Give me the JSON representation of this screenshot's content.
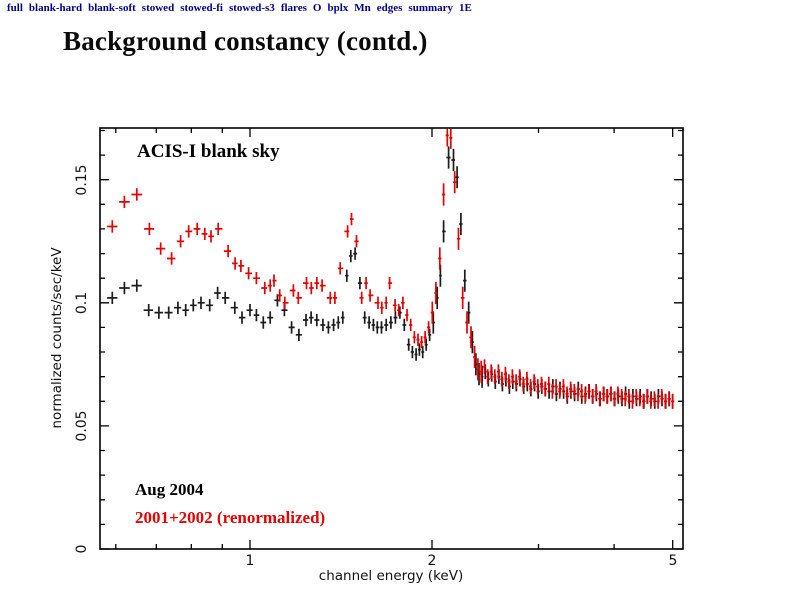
{
  "nav": {
    "items": [
      {
        "label": "full"
      },
      {
        "label": "blank-hard"
      },
      {
        "label": "blank-soft"
      },
      {
        "label": "stowed"
      },
      {
        "label": "stowed-fi"
      },
      {
        "label": "stowed-s3"
      },
      {
        "label": "flares"
      },
      {
        "label": "O"
      },
      {
        "label": "bplx"
      },
      {
        "label": "Mn"
      },
      {
        "label": "edges"
      },
      {
        "label": "summary"
      },
      {
        "label": "1E"
      }
    ]
  },
  "title": "Background constancy (contd.)",
  "colors": {
    "nav": "#00008b",
    "black_series": "#1c1c1c",
    "red_series": "#e60000"
  },
  "chart_data": {
    "type": "scatter",
    "annotation": "ACIS-I blank sky",
    "xlabel": "channel energy (keV)",
    "ylabel": "normalized counts/sec/keV",
    "xscale": "log",
    "xlim": [
      0.565,
      5.2
    ],
    "ylim": [
      0,
      0.171
    ],
    "x_major_ticks": [
      1,
      2,
      5
    ],
    "x_minor_ticks": [
      0.6,
      0.7,
      0.8,
      0.9,
      3,
      4
    ],
    "x_tick_labels": [
      "1",
      "2",
      "5"
    ],
    "y_major_ticks": [
      0,
      0.05,
      0.1,
      0.15
    ],
    "y_tick_labels": [
      "0",
      "0.05",
      "0.1",
      "0.15"
    ],
    "y_minor_step": 0.01,
    "grid": false,
    "legend_position": "bottom-left-inside",
    "yerr_rule": {
      "low": 0.0025,
      "peak": 0.0045,
      "high": 0.003,
      "peak_min": 2.0,
      "peak_max": 2.42
    },
    "series": [
      {
        "name": "Aug 2004",
        "color": "#1c1c1c",
        "points": [
          [
            0.592,
            0.102
          ],
          [
            0.62,
            0.106
          ],
          [
            0.65,
            0.107
          ],
          [
            0.68,
            0.097
          ],
          [
            0.707,
            0.096
          ],
          [
            0.734,
            0.096
          ],
          [
            0.76,
            0.098
          ],
          [
            0.783,
            0.097
          ],
          [
            0.806,
            0.099
          ],
          [
            0.83,
            0.1
          ],
          [
            0.858,
            0.099
          ],
          [
            0.884,
            0.104
          ],
          [
            0.91,
            0.102
          ],
          [
            0.944,
            0.098
          ],
          [
            0.97,
            0.094
          ],
          [
            1.0,
            0.097
          ],
          [
            1.025,
            0.095
          ],
          [
            1.052,
            0.092
          ],
          [
            1.08,
            0.094
          ],
          [
            1.11,
            0.101
          ],
          [
            1.14,
            0.097
          ],
          [
            1.172,
            0.09
          ],
          [
            1.205,
            0.087
          ],
          [
            1.238,
            0.093
          ],
          [
            1.262,
            0.094
          ],
          [
            1.29,
            0.093
          ],
          [
            1.32,
            0.091
          ],
          [
            1.348,
            0.09
          ],
          [
            1.375,
            0.091
          ],
          [
            1.4,
            0.092
          ],
          [
            1.424,
            0.094
          ],
          [
            1.446,
            0.111
          ],
          [
            1.468,
            0.119
          ],
          [
            1.492,
            0.12
          ],
          [
            1.52,
            0.108
          ],
          [
            1.548,
            0.094
          ],
          [
            1.574,
            0.092
          ],
          [
            1.6,
            0.091
          ],
          [
            1.624,
            0.09
          ],
          [
            1.65,
            0.09
          ],
          [
            1.68,
            0.091
          ],
          [
            1.71,
            0.092
          ],
          [
            1.74,
            0.094
          ],
          [
            1.77,
            0.096
          ],
          [
            1.8,
            0.091
          ],
          [
            1.83,
            0.083
          ],
          [
            1.856,
            0.08
          ],
          [
            1.882,
            0.079
          ],
          [
            1.906,
            0.081
          ],
          [
            1.93,
            0.08
          ],
          [
            1.956,
            0.083
          ],
          [
            1.982,
            0.087
          ],
          [
            2.01,
            0.092
          ],
          [
            2.04,
            0.102
          ],
          [
            2.065,
            0.111
          ],
          [
            2.09,
            0.129
          ],
          [
            2.13,
            0.159
          ],
          [
            2.17,
            0.158
          ],
          [
            2.2,
            0.151
          ],
          [
            2.232,
            0.132
          ],
          [
            2.266,
            0.109
          ],
          [
            2.3,
            0.096
          ],
          [
            2.332,
            0.084
          ],
          [
            2.364,
            0.075
          ],
          [
            2.392,
            0.071
          ],
          [
            2.42,
            0.07
          ],
          [
            2.45,
            0.072
          ],
          [
            2.478,
            0.069
          ],
          [
            2.51,
            0.071
          ],
          [
            2.545,
            0.068
          ],
          [
            2.58,
            0.07
          ],
          [
            2.615,
            0.067
          ],
          [
            2.65,
            0.069
          ],
          [
            2.685,
            0.066
          ],
          [
            2.72,
            0.068
          ],
          [
            2.758,
            0.067
          ],
          [
            2.796,
            0.069
          ],
          [
            2.835,
            0.066
          ],
          [
            2.874,
            0.067
          ],
          [
            2.914,
            0.065
          ],
          [
            2.955,
            0.067
          ],
          [
            2.996,
            0.064
          ],
          [
            3.038,
            0.066
          ],
          [
            3.08,
            0.065
          ],
          [
            3.123,
            0.064
          ],
          [
            3.167,
            0.066
          ],
          [
            3.211,
            0.063
          ],
          [
            3.256,
            0.065
          ],
          [
            3.301,
            0.064
          ],
          [
            3.347,
            0.062
          ],
          [
            3.394,
            0.064
          ],
          [
            3.442,
            0.063
          ],
          [
            3.49,
            0.065
          ],
          [
            3.538,
            0.062
          ],
          [
            3.588,
            0.063
          ],
          [
            3.638,
            0.064
          ],
          [
            3.689,
            0.062
          ],
          [
            3.74,
            0.063
          ],
          [
            3.793,
            0.061
          ],
          [
            3.846,
            0.063
          ],
          [
            3.9,
            0.062
          ],
          [
            3.954,
            0.063
          ],
          [
            4.009,
            0.061
          ],
          [
            4.065,
            0.062
          ],
          [
            4.122,
            0.061
          ],
          [
            4.18,
            0.063
          ],
          [
            4.238,
            0.06
          ],
          [
            4.297,
            0.062
          ],
          [
            4.357,
            0.061
          ],
          [
            4.418,
            0.062
          ],
          [
            4.48,
            0.06
          ],
          [
            4.542,
            0.062
          ],
          [
            4.606,
            0.061
          ],
          [
            4.67,
            0.06
          ],
          [
            4.735,
            0.062
          ],
          [
            4.801,
            0.061
          ],
          [
            4.868,
            0.06
          ],
          [
            4.936,
            0.061
          ],
          [
            5.0,
            0.06
          ]
        ]
      },
      {
        "name": "2001+2002 (renormalized)",
        "color": "#e60000",
        "points": [
          [
            0.592,
            0.131
          ],
          [
            0.62,
            0.141
          ],
          [
            0.65,
            0.144
          ],
          [
            0.682,
            0.13
          ],
          [
            0.712,
            0.122
          ],
          [
            0.742,
            0.118
          ],
          [
            0.768,
            0.125
          ],
          [
            0.792,
            0.129
          ],
          [
            0.818,
            0.13
          ],
          [
            0.842,
            0.128
          ],
          [
            0.862,
            0.127
          ],
          [
            0.886,
            0.13
          ],
          [
            0.92,
            0.121
          ],
          [
            0.945,
            0.116
          ],
          [
            0.966,
            0.115
          ],
          [
            0.995,
            0.112
          ],
          [
            1.025,
            0.11
          ],
          [
            1.058,
            0.106
          ],
          [
            1.08,
            0.107
          ],
          [
            1.096,
            0.109
          ],
          [
            1.12,
            0.103
          ],
          [
            1.142,
            0.1
          ],
          [
            1.18,
            0.105
          ],
          [
            1.202,
            0.102
          ],
          [
            1.24,
            0.108
          ],
          [
            1.263,
            0.106
          ],
          [
            1.29,
            0.108
          ],
          [
            1.316,
            0.107
          ],
          [
            1.358,
            0.102
          ],
          [
            1.382,
            0.102
          ],
          [
            1.41,
            0.114
          ],
          [
            1.45,
            0.129
          ],
          [
            1.472,
            0.134
          ],
          [
            1.5,
            0.125
          ],
          [
            1.53,
            0.102
          ],
          [
            1.556,
            0.108
          ],
          [
            1.58,
            0.103
          ],
          [
            1.628,
            0.1
          ],
          [
            1.652,
            0.098
          ],
          [
            1.68,
            0.1
          ],
          [
            1.702,
            0.108
          ],
          [
            1.738,
            0.099
          ],
          [
            1.762,
            0.097
          ],
          [
            1.79,
            0.1
          ],
          [
            1.818,
            0.095
          ],
          [
            1.844,
            0.091
          ],
          [
            1.87,
            0.086
          ],
          [
            1.896,
            0.085
          ],
          [
            1.922,
            0.084
          ],
          [
            1.948,
            0.086
          ],
          [
            1.974,
            0.09
          ],
          [
            2.002,
            0.096
          ],
          [
            2.03,
            0.104
          ],
          [
            2.06,
            0.118
          ],
          [
            2.09,
            0.144
          ],
          [
            2.12,
            0.168
          ],
          [
            2.148,
            0.167
          ],
          [
            2.18,
            0.149
          ],
          [
            2.212,
            0.126
          ],
          [
            2.248,
            0.102
          ],
          [
            2.285,
            0.092
          ],
          [
            2.32,
            0.086
          ],
          [
            2.352,
            0.078
          ],
          [
            2.382,
            0.073
          ],
          [
            2.412,
            0.072
          ],
          [
            2.442,
            0.074
          ],
          [
            2.472,
            0.07
          ],
          [
            2.505,
            0.072
          ],
          [
            2.54,
            0.07
          ],
          [
            2.575,
            0.072
          ],
          [
            2.61,
            0.069
          ],
          [
            2.645,
            0.071
          ],
          [
            2.68,
            0.068
          ],
          [
            2.716,
            0.07
          ],
          [
            2.754,
            0.068
          ],
          [
            2.792,
            0.07
          ],
          [
            2.83,
            0.067
          ],
          [
            2.87,
            0.069
          ],
          [
            2.91,
            0.066
          ],
          [
            2.95,
            0.068
          ],
          [
            2.992,
            0.066
          ],
          [
            3.034,
            0.067
          ],
          [
            3.076,
            0.065
          ],
          [
            3.12,
            0.067
          ],
          [
            3.163,
            0.064
          ],
          [
            3.208,
            0.066
          ],
          [
            3.252,
            0.064
          ],
          [
            3.298,
            0.066
          ],
          [
            3.344,
            0.063
          ],
          [
            3.39,
            0.065
          ],
          [
            3.438,
            0.064
          ],
          [
            3.486,
            0.063
          ],
          [
            3.534,
            0.064
          ],
          [
            3.584,
            0.062
          ],
          [
            3.633,
            0.064
          ],
          [
            3.684,
            0.062
          ],
          [
            3.735,
            0.064
          ],
          [
            3.787,
            0.061
          ],
          [
            3.84,
            0.063
          ],
          [
            3.894,
            0.062
          ],
          [
            3.948,
            0.063
          ],
          [
            4.003,
            0.061
          ],
          [
            4.059,
            0.063
          ],
          [
            4.116,
            0.062
          ],
          [
            4.173,
            0.061
          ],
          [
            4.232,
            0.062
          ],
          [
            4.291,
            0.06
          ],
          [
            4.351,
            0.062
          ],
          [
            4.412,
            0.061
          ],
          [
            4.473,
            0.06
          ],
          [
            4.536,
            0.062
          ],
          [
            4.6,
            0.06
          ],
          [
            4.664,
            0.061
          ],
          [
            4.729,
            0.06
          ],
          [
            4.795,
            0.062
          ],
          [
            4.862,
            0.06
          ],
          [
            4.93,
            0.061
          ],
          [
            4.999,
            0.06
          ]
        ]
      }
    ]
  }
}
